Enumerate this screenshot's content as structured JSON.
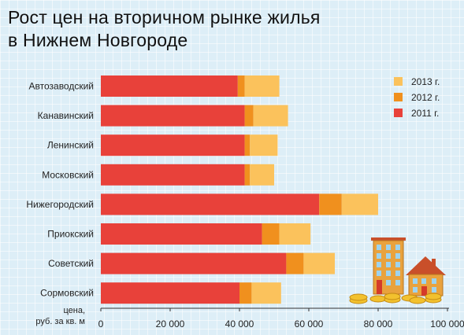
{
  "title": {
    "line1": "Рост цен на вторичном рынке жилья",
    "line2": "в Нижнем Новгороде"
  },
  "chart_data": {
    "type": "bar",
    "orientation": "horizontal",
    "stacked": true,
    "categories": [
      "Автозаводский",
      "Канавинский",
      "Ленинский",
      "Московский",
      "Нижегородский",
      "Приокский",
      "Советский",
      "Сормовский"
    ],
    "series": [
      {
        "name": "2011 г.",
        "color": "#e8413a",
        "values": [
          39500,
          41500,
          41500,
          41500,
          63000,
          46500,
          53500,
          40000
        ]
      },
      {
        "name": "2012 г.",
        "color": "#f0901e",
        "values": [
          2000,
          2500,
          1500,
          1500,
          6500,
          5000,
          5000,
          3500
        ]
      },
      {
        "name": "2013 г.",
        "color": "#fbc25c",
        "values": [
          10000,
          10000,
          8000,
          7000,
          10500,
          9000,
          9000,
          8500
        ]
      }
    ],
    "xlim": [
      0,
      100000
    ],
    "x_ticks": [
      0,
      20000,
      40000,
      60000,
      80000,
      100000
    ],
    "x_tick_labels": [
      "0",
      "20 000",
      "40 000",
      "60 000",
      "80 000",
      "100 000"
    ],
    "xlabel_line1": "цена,",
    "xlabel_line2": "руб. за кв. м",
    "legend_order": [
      2,
      1,
      0
    ],
    "legend_position": "top-right",
    "grid": false
  },
  "decoration": {
    "buildings_icon": "buildings-illustration",
    "coins_icon": "coins-illustration"
  }
}
